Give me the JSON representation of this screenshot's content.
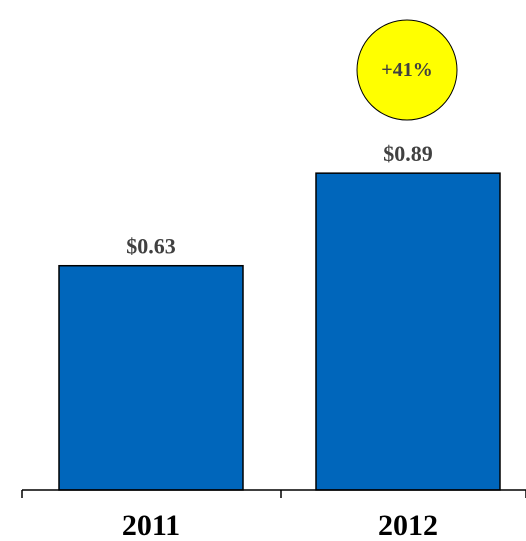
{
  "chart_data": {
    "type": "bar",
    "categories": [
      "2011",
      "2012"
    ],
    "values": [
      0.63,
      0.89
    ],
    "value_labels": [
      "$0.63",
      "$0.89"
    ],
    "title": "",
    "xlabel": "",
    "ylabel": "",
    "ylim": [
      0,
      1.4
    ],
    "grid": false,
    "legend": "none",
    "bar_color": "#0066BB",
    "annotation": {
      "text": "+41%",
      "color": "#FFFF00",
      "category": "2012"
    }
  }
}
